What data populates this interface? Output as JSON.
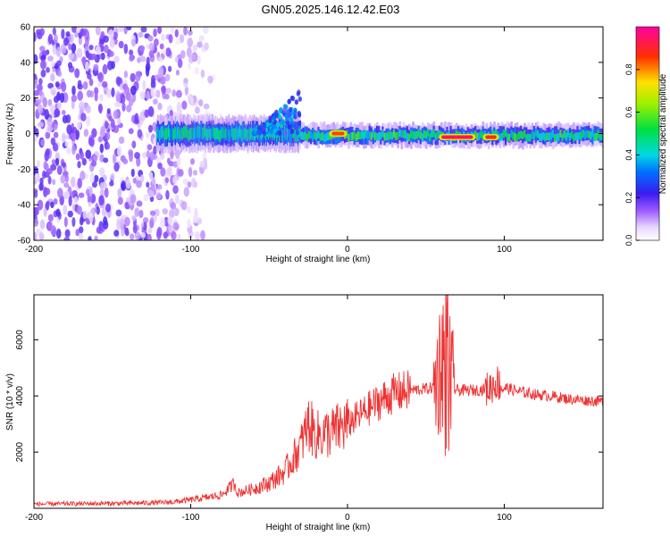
{
  "title": "GN05.2025.146.12.42.E03",
  "chart_data": [
    {
      "type": "heatmap",
      "xlabel": "Height of straight line (km)",
      "ylabel": "Frequency (Hz)",
      "xlim": [
        -200,
        163
      ],
      "ylim": [
        -60,
        60
      ],
      "xticks": [
        -200,
        -100,
        0,
        100
      ],
      "yticks": [
        -60,
        -40,
        -20,
        0,
        20,
        40,
        60
      ],
      "colorbar": {
        "label": "Normalized spectral amplitude",
        "range": [
          0,
          1
        ],
        "ticks": [
          0.0,
          0.2,
          0.4,
          0.6,
          0.8
        ],
        "colormap": "rainbow (white-violet-blue-cyan-green-yellow-red-magenta)"
      },
      "features": [
        {
          "kind": "noise",
          "x_range": [
            -200,
            -85
          ],
          "freq_range": [
            -60,
            60
          ],
          "amplitude": 0.15
        },
        {
          "kind": "band",
          "x_range": [
            -122,
            -30
          ],
          "center_hz": 0,
          "halfwidth_hz": 6,
          "amplitude": 0.4
        },
        {
          "kind": "band",
          "x_range": [
            -30,
            163
          ],
          "center_hz": -1,
          "halfwidth_hz": 4,
          "amplitude": 0.45
        },
        {
          "kind": "plume",
          "x_range": [
            -60,
            -30
          ],
          "freq_range": [
            0,
            25
          ],
          "amplitude": 0.3
        },
        {
          "kind": "hotspot",
          "x_range": [
            60,
            80
          ],
          "center_hz": -2,
          "amplitude": 0.95
        },
        {
          "kind": "hotspot",
          "x_range": [
            88,
            95
          ],
          "center_hz": -2,
          "amplitude": 0.9
        },
        {
          "kind": "hotspot",
          "x_range": [
            -10,
            -2
          ],
          "center_hz": 0,
          "amplitude": 0.85
        }
      ],
      "grid": false,
      "legend": "colorbar-right"
    },
    {
      "type": "line",
      "xlabel": "Height of straight line (km)",
      "ylabel": "SNR (10 * v/v)",
      "xlim": [
        -200,
        163
      ],
      "ylim": [
        0,
        7600
      ],
      "xticks": [
        -200,
        -100,
        0,
        100
      ],
      "yticks": [
        2000,
        4000,
        6000
      ],
      "color": "#ee3333",
      "series": [
        {
          "x": [
            -200,
            -180,
            -160,
            -140,
            -120,
            -110,
            -100,
            -90,
            -80,
            -72,
            -70,
            -60,
            -50,
            -40,
            -30,
            -25,
            -20,
            -10,
            0,
            10,
            20,
            30,
            40,
            50,
            55,
            60,
            62,
            64,
            66,
            70,
            80,
            90,
            95,
            100,
            110,
            120,
            130,
            140,
            150,
            163
          ],
          "y": [
            150,
            160,
            170,
            180,
            200,
            230,
            300,
            380,
            480,
            900,
            550,
            700,
            900,
            1300,
            2200,
            3000,
            2600,
            2700,
            3000,
            3400,
            3800,
            4100,
            4200,
            4250,
            4300,
            5200,
            6200,
            7000,
            4300,
            4200,
            4200,
            4250,
            4500,
            4300,
            4150,
            4050,
            4000,
            3900,
            3850,
            3800
          ]
        }
      ],
      "grid": false,
      "legend": "none"
    }
  ]
}
